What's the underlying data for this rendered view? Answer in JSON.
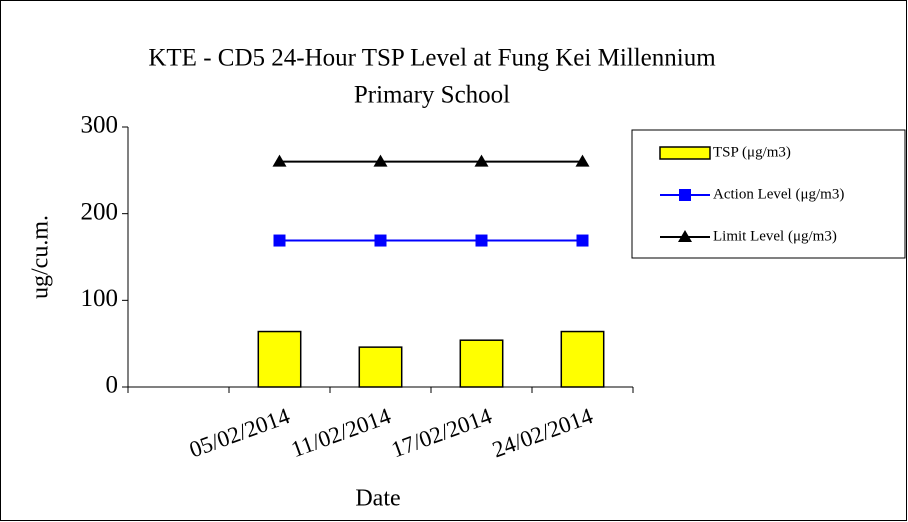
{
  "chart_data": {
    "type": "bar",
    "title": [
      "KTE - CD5 24-Hour TSP Level at Fung Kei Millennium",
      "Primary School"
    ],
    "xlabel": "Date",
    "ylabel": "ug/cu.m.",
    "categories": [
      null,
      "05/02/2014",
      "11/02/2014",
      "17/02/2014",
      "24/02/2014"
    ],
    "series": [
      {
        "name": "TSP (μg/m3)",
        "type": "bar",
        "color": "#ffff00",
        "values": [
          null,
          64,
          46,
          54,
          64
        ]
      },
      {
        "name": "Action Level (μg/m3)",
        "type": "line",
        "marker": "square",
        "color": "#0000ff",
        "values": [
          null,
          169,
          169,
          169,
          169
        ]
      },
      {
        "name": "Limit Level (μg/m3)",
        "type": "line",
        "marker": "triangle",
        "color": "#000000",
        "values": [
          null,
          260,
          260,
          260,
          260
        ]
      }
    ],
    "ylim": [
      0,
      300
    ],
    "yticks": [
      0,
      100,
      200,
      300
    ],
    "grid": false,
    "legend": "right"
  }
}
